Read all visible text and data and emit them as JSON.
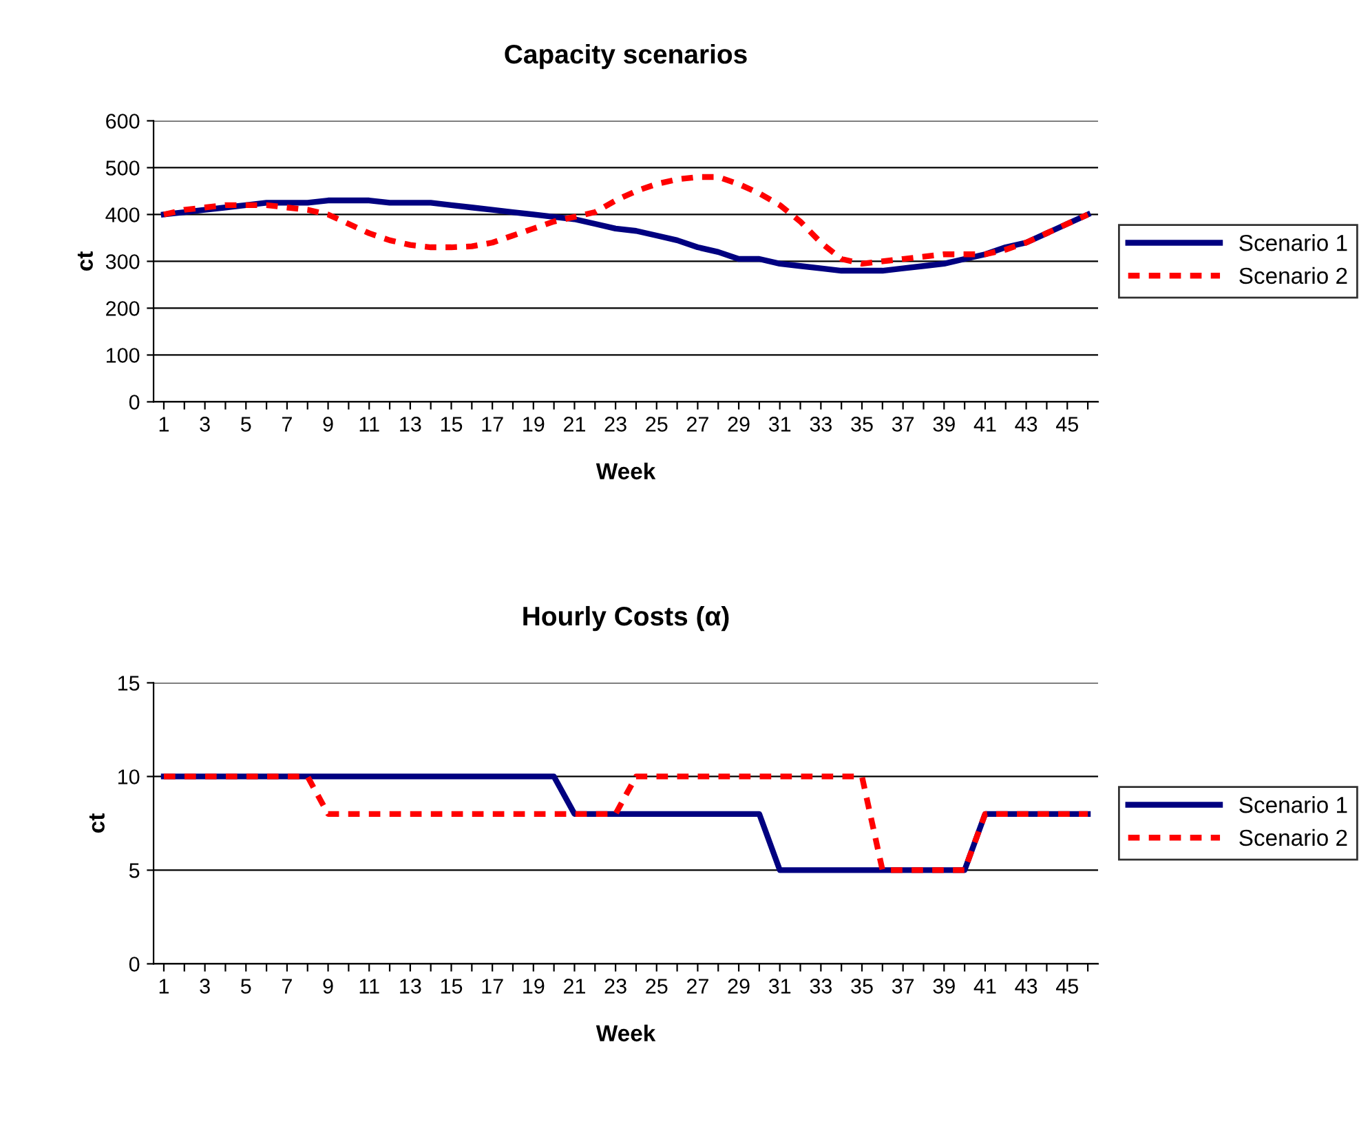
{
  "chart_data": [
    {
      "type": "line",
      "title": "Capacity scenarios",
      "xlabel": "Week",
      "ylabel": "ct",
      "categories": [
        "1",
        null,
        "3",
        null,
        "5",
        null,
        "7",
        null,
        "9",
        null,
        "11",
        null,
        "13",
        null,
        "15",
        null,
        "17",
        null,
        "19",
        null,
        "21",
        null,
        "23",
        null,
        "25",
        null,
        "27",
        null,
        "29",
        null,
        "31",
        null,
        "33",
        null,
        "35",
        null,
        "37",
        null,
        "39",
        null,
        "41",
        null,
        "43",
        null,
        "45",
        null
      ],
      "ylim": [
        0,
        600
      ],
      "yticks": [
        0,
        100,
        200,
        300,
        400,
        500,
        600
      ],
      "grid": "y",
      "legend": "right",
      "marker": "none",
      "series": [
        {
          "name": "Scenario 1",
          "color": "#000080",
          "line_style": "solid",
          "values": [
            400,
            405,
            410,
            415,
            420,
            425,
            425,
            425,
            430,
            430,
            430,
            425,
            425,
            425,
            420,
            415,
            410,
            405,
            400,
            395,
            390,
            380,
            370,
            365,
            355,
            345,
            330,
            320,
            305,
            305,
            295,
            290,
            285,
            280,
            280,
            280,
            285,
            290,
            295,
            305,
            315,
            330,
            340,
            360,
            380,
            400
          ]
        },
        {
          "name": "Scenario 2",
          "color": "#ff0000",
          "line_style": "dashed",
          "values": [
            400,
            410,
            415,
            420,
            420,
            420,
            415,
            410,
            400,
            380,
            360,
            345,
            335,
            330,
            330,
            332,
            340,
            355,
            370,
            385,
            395,
            405,
            430,
            450,
            465,
            475,
            480,
            480,
            465,
            445,
            420,
            385,
            340,
            305,
            295,
            300,
            305,
            310,
            315,
            315,
            315,
            325,
            340,
            360,
            380,
            400
          ]
        }
      ]
    },
    {
      "type": "line",
      "title": "Hourly Costs (α)",
      "xlabel": "Week",
      "ylabel": "ct",
      "categories": [
        "1",
        null,
        "3",
        null,
        "5",
        null,
        "7",
        null,
        "9",
        null,
        "11",
        null,
        "13",
        null,
        "15",
        null,
        "17",
        null,
        "19",
        null,
        "21",
        null,
        "23",
        null,
        "25",
        null,
        "27",
        null,
        "29",
        null,
        "31",
        null,
        "33",
        null,
        "35",
        null,
        "37",
        null,
        "39",
        null,
        "41",
        null,
        "43",
        null,
        "45",
        null
      ],
      "ylim": [
        0,
        15
      ],
      "yticks": [
        0,
        5,
        10,
        15
      ],
      "grid": "y",
      "legend": "right",
      "marker": "none",
      "series": [
        {
          "name": "Scenario 1",
          "color": "#000080",
          "line_style": "solid",
          "values": [
            10,
            10,
            10,
            10,
            10,
            10,
            10,
            10,
            10,
            10,
            10,
            10,
            10,
            10,
            10,
            10,
            10,
            10,
            10,
            10,
            8,
            8,
            8,
            8,
            8,
            8,
            8,
            8,
            8,
            8,
            5,
            5,
            5,
            5,
            5,
            5,
            5,
            5,
            5,
            5,
            8,
            8,
            8,
            8,
            8,
            8
          ]
        },
        {
          "name": "Scenario 2",
          "color": "#ff0000",
          "line_style": "dashed",
          "values": [
            10,
            10,
            10,
            10,
            10,
            10,
            10,
            10,
            8,
            8,
            8,
            8,
            8,
            8,
            8,
            8,
            8,
            8,
            8,
            8,
            8,
            8,
            8,
            10,
            10,
            10,
            10,
            10,
            10,
            10,
            10,
            10,
            10,
            10,
            10,
            5,
            5,
            5,
            5,
            5,
            8,
            8,
            8,
            8,
            8,
            8
          ]
        }
      ]
    }
  ]
}
